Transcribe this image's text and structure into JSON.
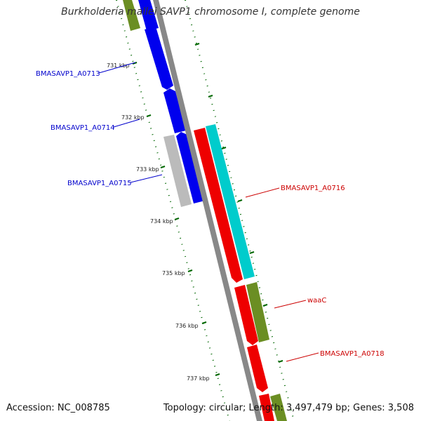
{
  "title": "Burkholderia mallei SAVP1 chromosome I, complete genome",
  "footer": {
    "accession": "Accession: NC_008785",
    "summary": "Topology: circular; Length: 3,497,479 bp; Genes: 3,508"
  },
  "ticks": [
    "731 kbp",
    "732 kbp",
    "733 kbp",
    "734 kbp",
    "735 kbp",
    "736 kbp",
    "737 kbp"
  ],
  "genes": [
    {
      "name": "BMASAVP1_A0713",
      "color": "#0000cc"
    },
    {
      "name": "BMASAVP1_A0714",
      "color": "#0000cc"
    },
    {
      "name": "BMASAVP1_A0715",
      "color": "#0000cc"
    },
    {
      "name": "BMASAVP1_A0716",
      "color": "#cc0000"
    },
    {
      "name": "waaC",
      "color": "#cc0000"
    },
    {
      "name": "BMASAVP1_A0718",
      "color": "#cc0000"
    }
  ],
  "colors": {
    "forward_cds": "#ee0000",
    "reverse_cds": "#0000ee",
    "rrna_like": "#00cccc",
    "gene_track": "#6b8e23",
    "other": "#bbbbbb",
    "backbone": "#888888",
    "tick": "#006600"
  }
}
